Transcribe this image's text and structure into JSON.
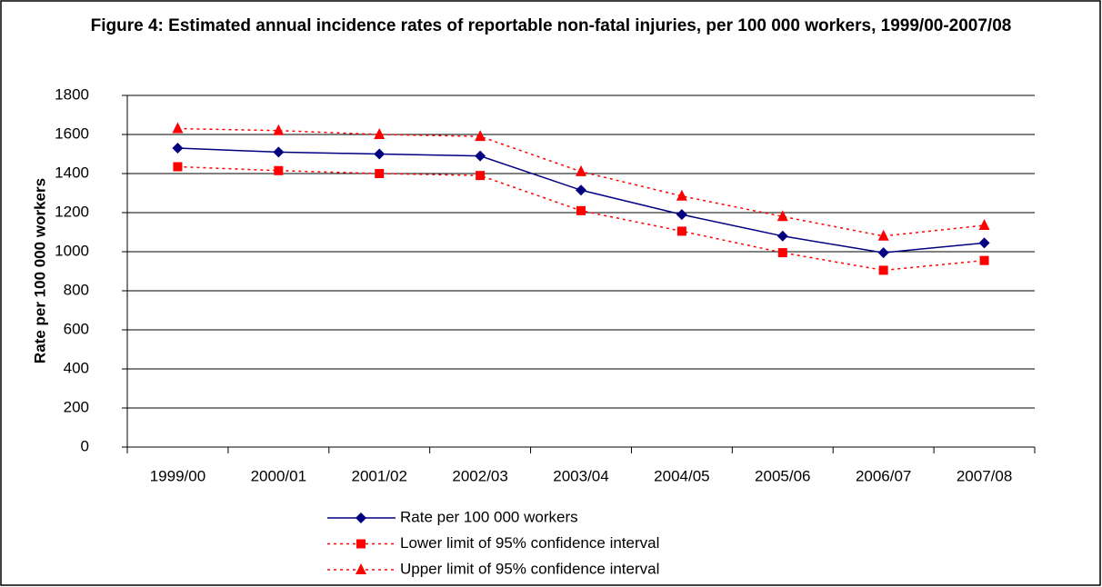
{
  "chart_data": {
    "type": "line",
    "title": "Figure 4: Estimated annual incidence rates of reportable non-fatal injuries, per 100 000 workers, 1999/00-2007/08",
    "y_label": "Rate per 100 000 workers",
    "categories": [
      "1999/00",
      "2000/01",
      "2001/02",
      "2002/03",
      "2003/04",
      "2004/05",
      "2005/06",
      "2006/07",
      "2007/08"
    ],
    "series": [
      {
        "name": "Rate per 100 000 workers",
        "color": "#000080",
        "values": [
          1530,
          1510,
          1500,
          1490,
          1315,
          1190,
          1080,
          995,
          1045
        ]
      },
      {
        "name": "Lower limit of 95% confidence interval",
        "color": "#ff0000",
        "values": [
          1435,
          1415,
          1400,
          1390,
          1210,
          1105,
          995,
          905,
          955
        ]
      },
      {
        "name": "Upper limit of 95% confidence interval",
        "color": "#ff0000",
        "values": [
          1630,
          1620,
          1600,
          1590,
          1410,
          1285,
          1180,
          1080,
          1135
        ]
      }
    ],
    "ylim": [
      0,
      1800
    ],
    "yticks": [
      0,
      200,
      400,
      600,
      800,
      1000,
      1200,
      1400,
      1600,
      1800
    ],
    "grid": true,
    "legend": "bottom"
  }
}
